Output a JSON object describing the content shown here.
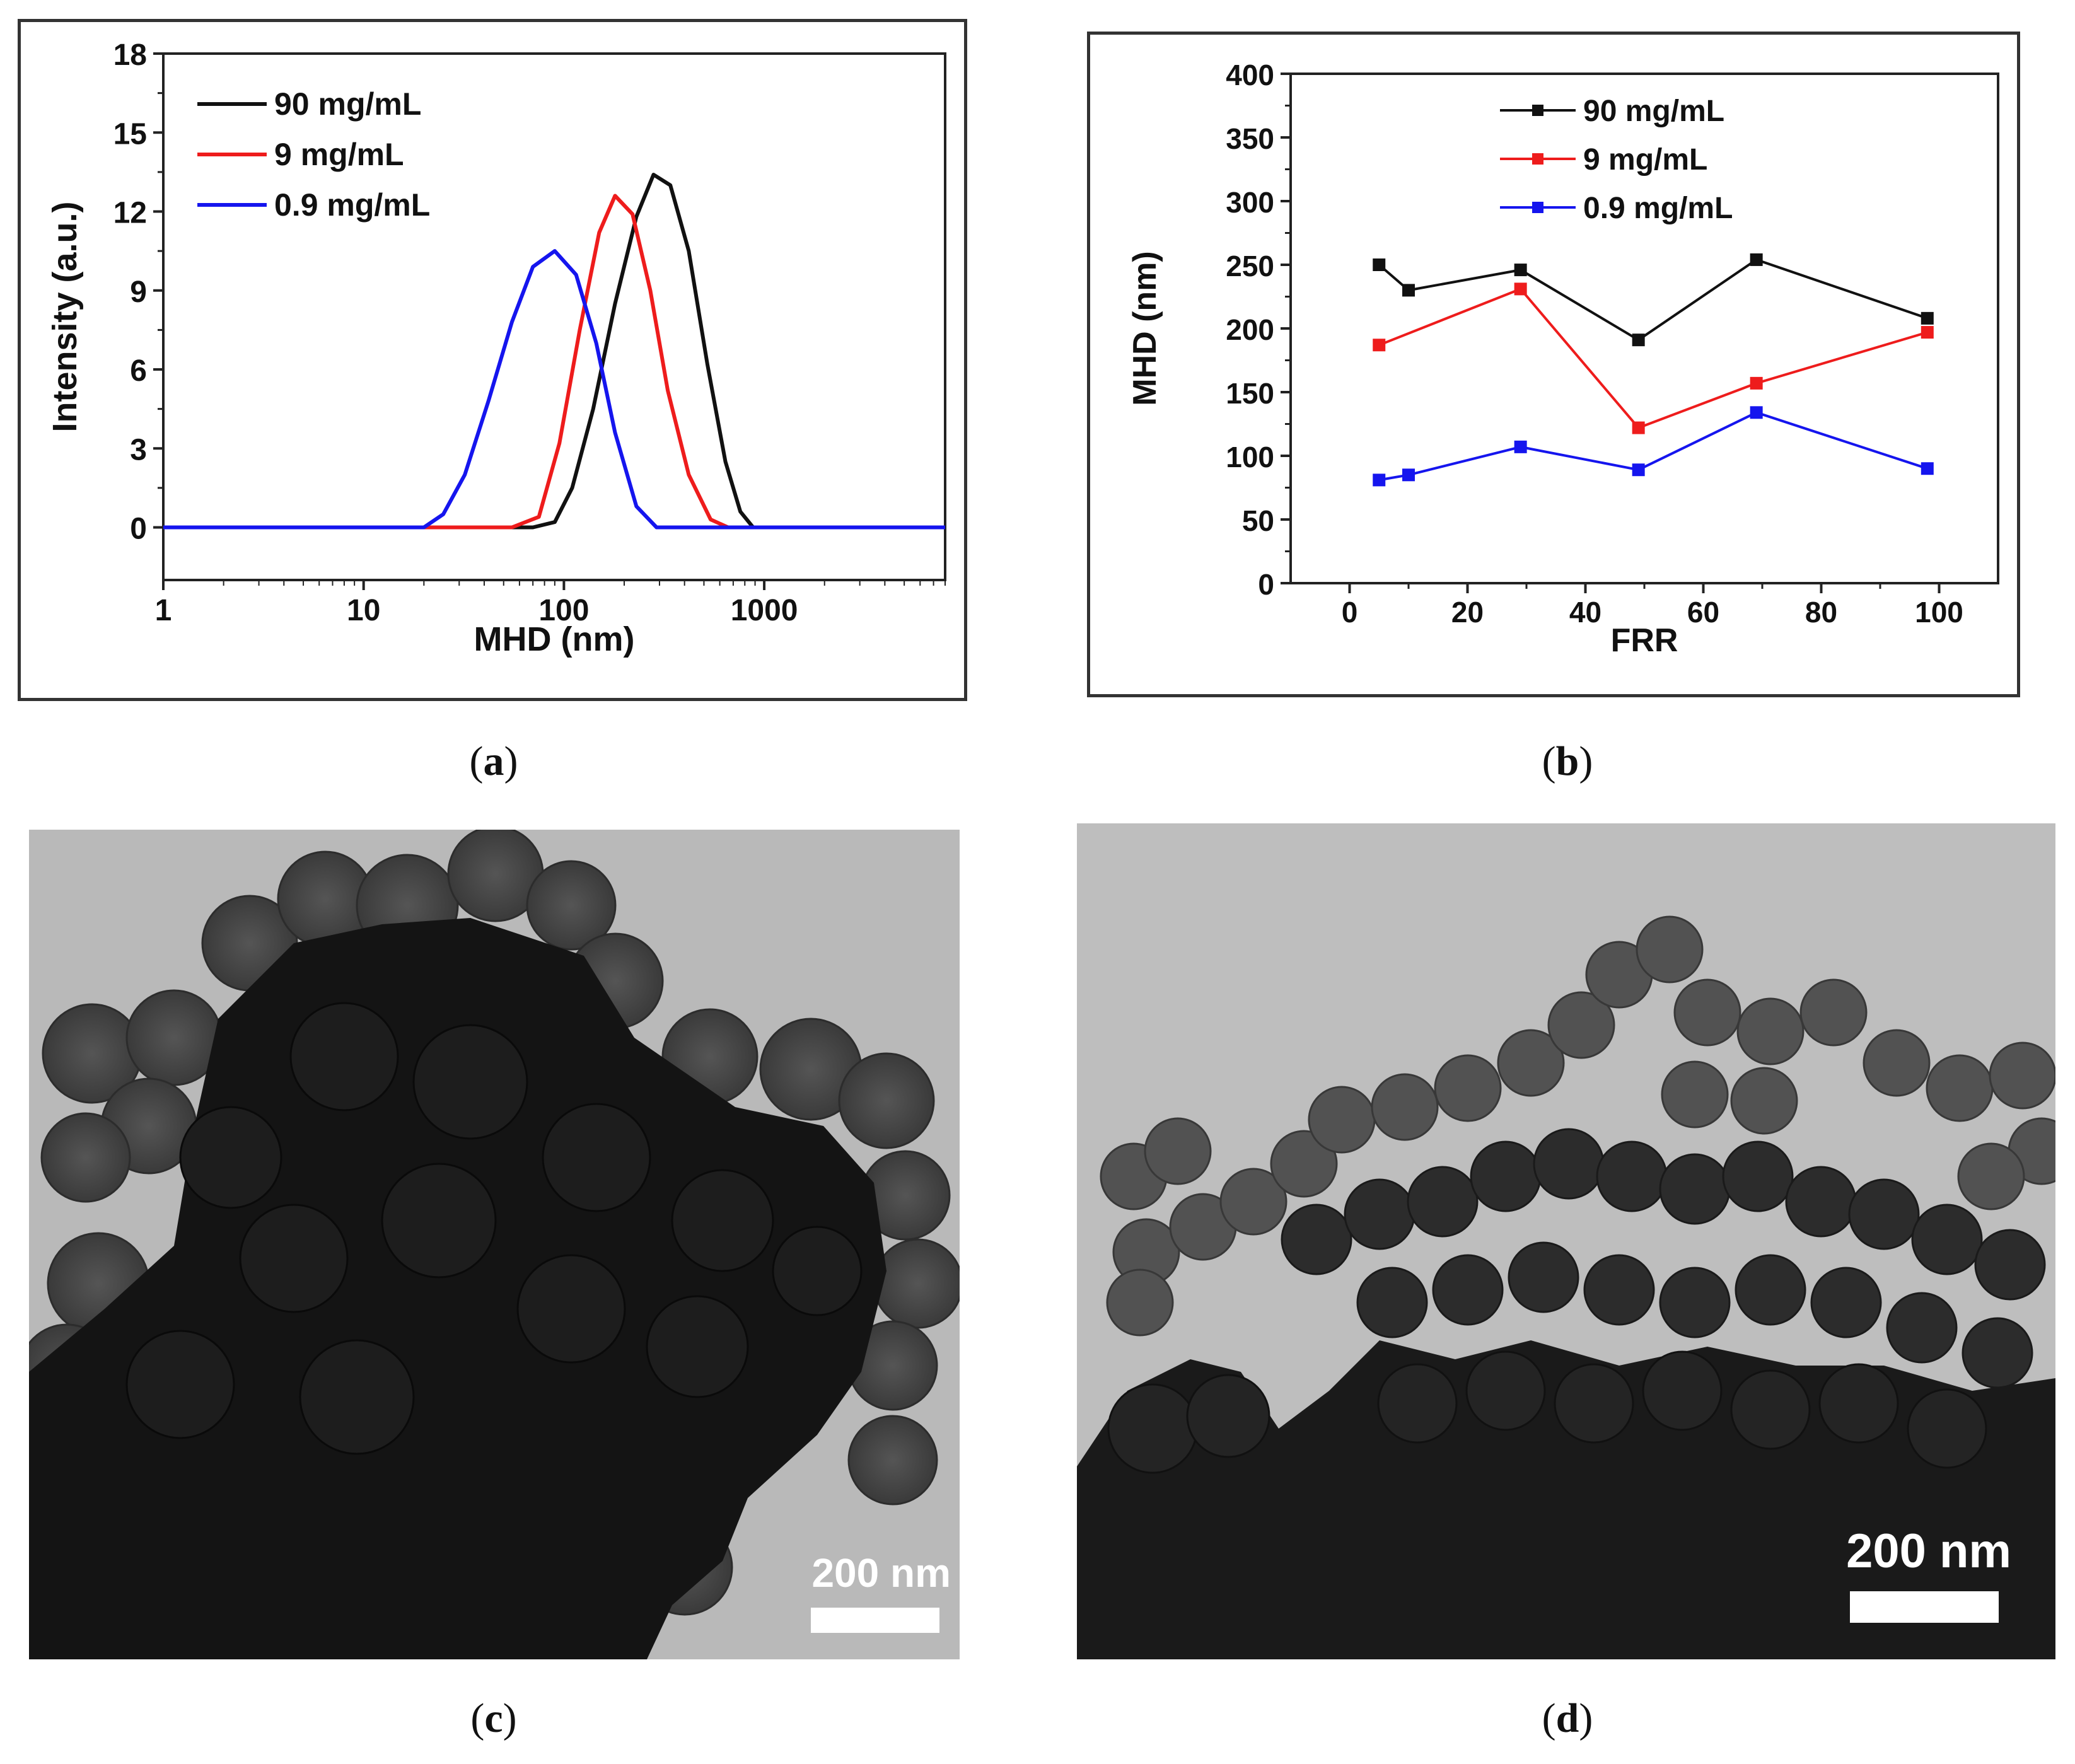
{
  "panels": {
    "a": {
      "label": "a"
    },
    "b": {
      "label": "b"
    },
    "c": {
      "label": "c",
      "scale_bar": "200 nm"
    },
    "d": {
      "label": "d",
      "scale_bar": "200 nm"
    }
  },
  "colors": {
    "black": "#111111",
    "red": "#ee1c1c",
    "blue": "#1515ee"
  },
  "chart_data": [
    {
      "type": "line",
      "panel": "a",
      "xlabel": "MHD (nm)",
      "ylabel": "Intensity (a.u.)",
      "xscale": "log",
      "xlim": [
        1,
        8000
      ],
      "ylim": [
        -2,
        18
      ],
      "xticks": [
        1,
        10,
        100,
        1000
      ],
      "xtick_labels": [
        "1",
        "10",
        "100",
        "1000"
      ],
      "yticks": [
        0,
        3,
        6,
        9,
        12,
        15,
        18
      ],
      "ytick_labels": [
        "0",
        "3",
        "6",
        "9",
        "12",
        "15",
        "18"
      ],
      "legend_position": "top-left",
      "series": [
        {
          "name": "90 mg/mL",
          "color": "#111111",
          "x": [
            1,
            70,
            90,
            110,
            140,
            180,
            230,
            280,
            340,
            420,
            520,
            640,
            760,
            880,
            8000
          ],
          "y": [
            0,
            0,
            0.2,
            1.5,
            4.5,
            8.5,
            11.8,
            13.4,
            13.0,
            10.5,
            6.2,
            2.5,
            0.6,
            0,
            0
          ]
        },
        {
          "name": "9 mg/mL",
          "color": "#ee1c1c",
          "x": [
            1,
            55,
            75,
            95,
            120,
            150,
            180,
            220,
            270,
            330,
            420,
            540,
            660,
            8000
          ],
          "y": [
            0,
            0,
            0.4,
            3.2,
            7.5,
            11.2,
            12.6,
            11.9,
            9.0,
            5.2,
            2.0,
            0.3,
            0,
            0
          ]
        },
        {
          "name": "0.9 mg/mL",
          "color": "#1515ee",
          "x": [
            1,
            20,
            25,
            32,
            42,
            55,
            70,
            90,
            115,
            145,
            180,
            230,
            290,
            8000
          ],
          "y": [
            0,
            0,
            0.5,
            2.0,
            4.8,
            7.8,
            9.9,
            10.5,
            9.6,
            7.0,
            3.6,
            0.8,
            0,
            0
          ]
        }
      ]
    },
    {
      "type": "line",
      "panel": "b",
      "xlabel": "FRR",
      "ylabel": "MHD (nm)",
      "xlim": [
        -10,
        110
      ],
      "ylim": [
        0,
        400
      ],
      "xticks": [
        0,
        20,
        40,
        60,
        80,
        100
      ],
      "xtick_labels": [
        "0",
        "20",
        "40",
        "60",
        "80",
        "100"
      ],
      "yticks": [
        0,
        50,
        100,
        150,
        200,
        250,
        300,
        350,
        400
      ],
      "ytick_labels": [
        "0",
        "50",
        "100",
        "150",
        "200",
        "250",
        "300",
        "350",
        "400"
      ],
      "legend_position": "top-center",
      "series": [
        {
          "name": "90 mg/mL",
          "color": "#111111",
          "x": [
            5,
            10,
            29,
            49,
            69,
            98
          ],
          "y": [
            250,
            230,
            246,
            191,
            254,
            208
          ]
        },
        {
          "name": "9 mg/mL",
          "color": "#ee1c1c",
          "x": [
            5,
            29,
            49,
            69,
            98
          ],
          "y": [
            187,
            231,
            122,
            157,
            197
          ]
        },
        {
          "name": "0.9 mg/mL",
          "color": "#1515ee",
          "x": [
            5,
            10,
            29,
            49,
            69,
            98
          ],
          "y": [
            81,
            85,
            107,
            89,
            134,
            90
          ]
        }
      ]
    }
  ]
}
